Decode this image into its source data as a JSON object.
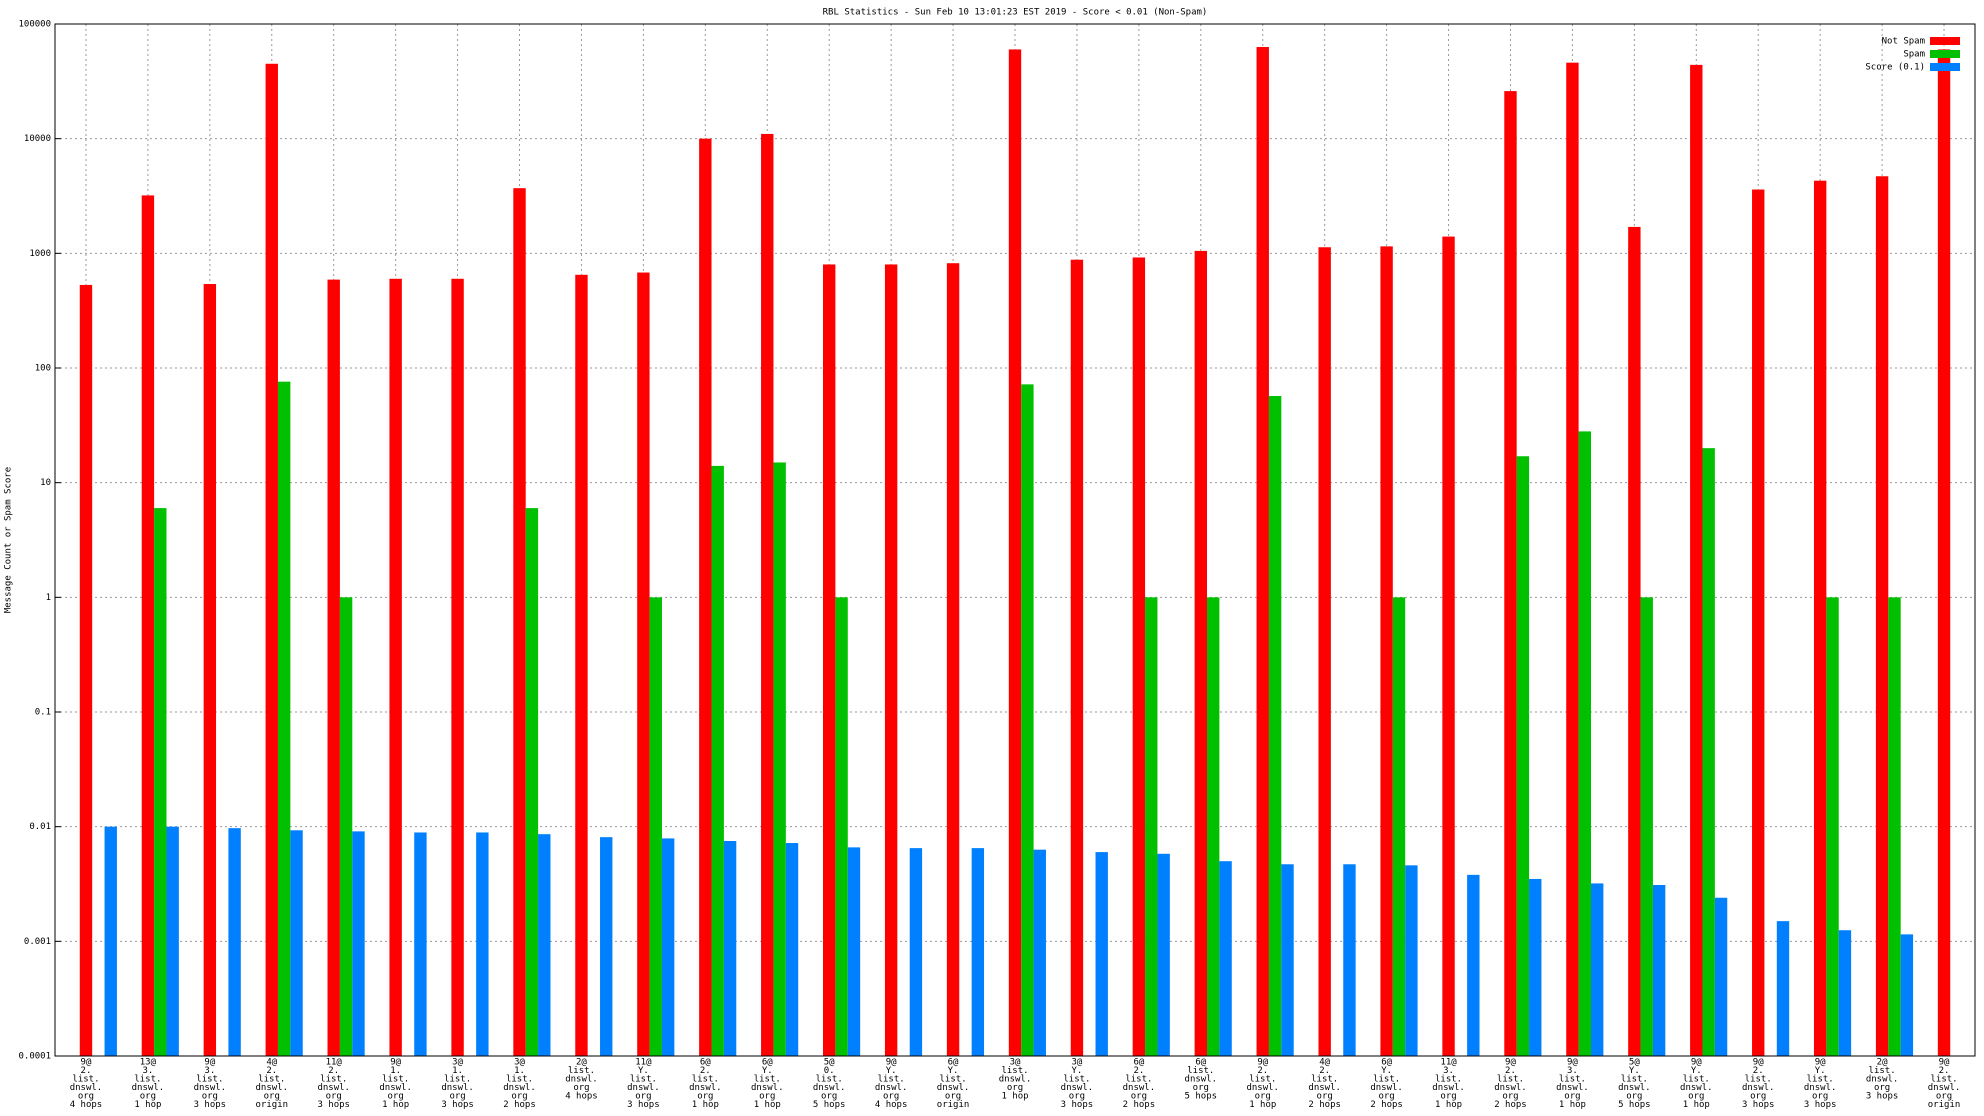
{
  "chart_data": {
    "type": "bar",
    "title": "RBL Statistics - Sun Feb 10 13:01:23 EST 2019 - Score < 0.01 (Non-Spam)",
    "y_label": "Message Count or Spam Score",
    "log_scale": true,
    "grid": true,
    "legend_position": "top-right",
    "categories": [
      [
        "9@",
        "2.",
        "list.",
        "dnswl.",
        "org",
        "4 hops"
      ],
      [
        "13@",
        "3.",
        "list.",
        "dnswl.",
        "org",
        "1 hop"
      ],
      [
        "9@",
        "3.",
        "list.",
        "dnswl.",
        "org",
        "3 hops"
      ],
      [
        "4@",
        "2.",
        "list.",
        "dnswl.",
        "org",
        "origin"
      ],
      [
        "11@",
        "2.",
        "list.",
        "dnswl.",
        "org",
        "3 hops"
      ],
      [
        "9@",
        "1.",
        "list.",
        "dnswl.",
        "org",
        "1 hop"
      ],
      [
        "3@",
        "1.",
        "list.",
        "dnswl.",
        "org",
        "3 hops"
      ],
      [
        "3@",
        "1.",
        "list.",
        "dnswl.",
        "org",
        "2 hops"
      ],
      [
        "2@",
        "list.",
        "dnswl.",
        "org",
        "4 hops"
      ],
      [
        "11@",
        "Y.",
        "list.",
        "dnswl.",
        "org",
        "3 hops"
      ],
      [
        "6@",
        "2.",
        "list.",
        "dnswl.",
        "org",
        "1 hop"
      ],
      [
        "6@",
        "Y.",
        "list.",
        "dnswl.",
        "org",
        "1 hop"
      ],
      [
        "5@",
        "0.",
        "list.",
        "dnswl.",
        "org",
        "5 hops"
      ],
      [
        "9@",
        "Y.",
        "list.",
        "dnswl.",
        "org",
        "4 hops"
      ],
      [
        "6@",
        "Y.",
        "list.",
        "dnswl.",
        "org",
        "origin"
      ],
      [
        "3@",
        "list.",
        "dnswl.",
        "org",
        "1 hop"
      ],
      [
        "3@",
        "Y.",
        "list.",
        "dnswl.",
        "org",
        "3 hops"
      ],
      [
        "6@",
        "2.",
        "list.",
        "dnswl.",
        "org",
        "2 hops"
      ],
      [
        "6@",
        "list.",
        "dnswl.",
        "org",
        "5 hops"
      ],
      [
        "9@",
        "2.",
        "list.",
        "dnswl.",
        "org",
        "1 hop"
      ],
      [
        "4@",
        "2.",
        "list.",
        "dnswl.",
        "org",
        "2 hops"
      ],
      [
        "6@",
        "Y.",
        "list.",
        "dnswl.",
        "org",
        "2 hops"
      ],
      [
        "11@",
        "3.",
        "list.",
        "dnswl.",
        "org",
        "1 hop"
      ],
      [
        "9@",
        "2.",
        "list.",
        "dnswl.",
        "org",
        "2 hops"
      ],
      [
        "9@",
        "3.",
        "list.",
        "dnswl.",
        "org",
        "1 hop"
      ],
      [
        "5@",
        "Y.",
        "list.",
        "dnswl.",
        "org",
        "5 hops"
      ],
      [
        "9@",
        "Y.",
        "list.",
        "dnswl.",
        "org",
        "1 hop"
      ],
      [
        "9@",
        "2.",
        "list.",
        "dnswl.",
        "org",
        "3 hops"
      ],
      [
        "9@",
        "Y.",
        "list.",
        "dnswl.",
        "org",
        "3 hops"
      ],
      [
        "2@",
        "list.",
        "dnswl.",
        "org",
        "3 hops"
      ],
      [
        "9@",
        "2.",
        "list.",
        "dnswl.",
        "org",
        "origin"
      ]
    ],
    "series": [
      {
        "name": "Not Spam",
        "color": "#ff0000",
        "values": [
          530,
          3200,
          540,
          45000,
          590,
          600,
          600,
          3700,
          650,
          680,
          10000,
          11000,
          800,
          800,
          820,
          60000,
          880,
          920,
          1050,
          63000,
          1130,
          1150,
          1400,
          26000,
          46000,
          1700,
          44000,
          3600,
          4300,
          4700,
          60000
        ]
      },
      {
        "name": "Spam",
        "color": "#00c000",
        "values": [
          null,
          6,
          null,
          76,
          1,
          null,
          null,
          6,
          null,
          1,
          14,
          15,
          1,
          null,
          null,
          72,
          null,
          1,
          1,
          57,
          null,
          1,
          null,
          17,
          28,
          1,
          20,
          null,
          1,
          1,
          null
        ]
      },
      {
        "name": "Score (0.1)",
        "color": "#0080ff",
        "values": [
          0.01,
          0.01,
          0.0097,
          0.0093,
          0.0091,
          0.0089,
          0.0089,
          0.0086,
          0.0081,
          0.0079,
          0.0075,
          0.0072,
          0.0066,
          0.0065,
          0.0065,
          0.0063,
          0.006,
          0.0058,
          0.005,
          0.0047,
          0.0047,
          0.0046,
          0.0038,
          0.0035,
          0.0032,
          0.0031,
          0.0024,
          0.0015,
          0.00125,
          0.00115,
          null
        ]
      }
    ],
    "ylim": [
      0.0001,
      100000
    ],
    "yticks": [
      0.0001,
      0.001,
      0.01,
      0.1,
      1,
      10,
      100,
      1000,
      10000,
      100000
    ]
  }
}
